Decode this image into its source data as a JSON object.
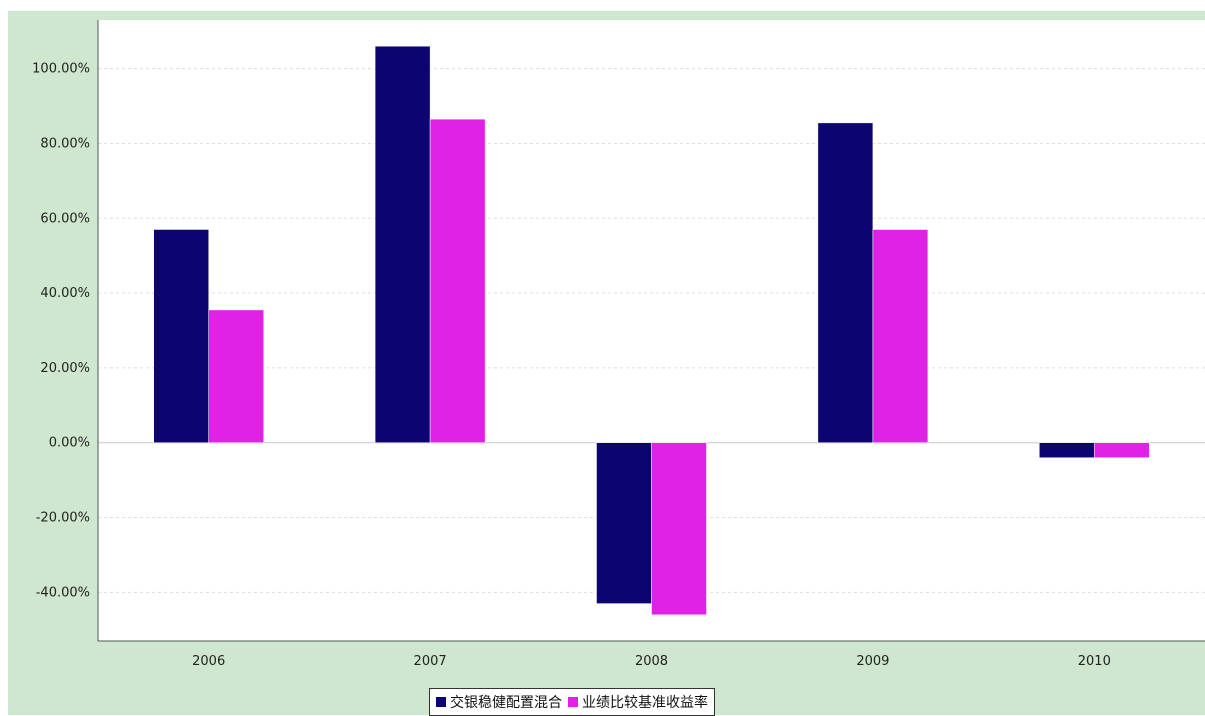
{
  "chart_data": {
    "type": "bar",
    "categories": [
      "2006",
      "2007",
      "2008",
      "2009",
      "2010"
    ],
    "series": [
      {
        "name": "交银稳健配置混合",
        "color": "#0c0570",
        "values": [
          57.0,
          106.0,
          -43.0,
          85.5,
          -4.0
        ]
      },
      {
        "name": "业绩比较基准收益率",
        "color": "#e022e6",
        "values": [
          35.5,
          86.5,
          -46.0,
          57.0,
          -4.0
        ]
      }
    ],
    "ylim": [
      -53,
      113
    ],
    "yticks": [
      -40,
      -20,
      0,
      20,
      40,
      60,
      80,
      100
    ],
    "ytick_labels": [
      "-40.00%",
      "-20.00%",
      "0.00%",
      "20.00%",
      "40.00%",
      "60.00%",
      "80.00%",
      "100.00%"
    ],
    "grid": true,
    "legend_position": "bottom-center",
    "title": "",
    "xlabel": "",
    "ylabel": ""
  }
}
